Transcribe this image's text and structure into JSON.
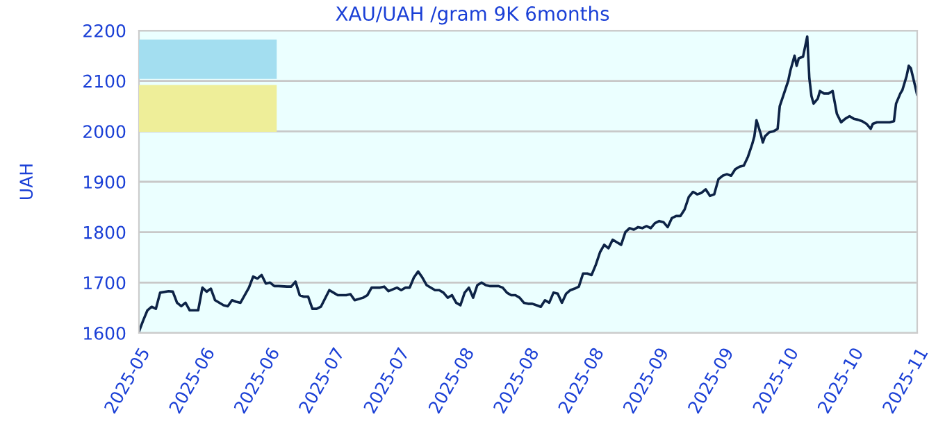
{
  "chart_data": {
    "type": "line",
    "title": "XAU/UAH /gram 9K 6months",
    "ylabel": "UAH",
    "x": [
      "2025-05-01",
      "2025-05-02",
      "2025-05-03",
      "2025-05-04",
      "2025-05-05",
      "2025-05-06",
      "2025-05-08",
      "2025-05-09",
      "2025-05-10",
      "2025-05-11",
      "2025-05-12",
      "2025-05-13",
      "2025-05-14",
      "2025-05-15",
      "2025-05-16",
      "2025-05-17",
      "2025-05-18",
      "2025-05-19",
      "2025-05-21",
      "2025-05-22",
      "2025-05-23",
      "2025-05-24",
      "2025-05-25",
      "2025-05-27",
      "2025-05-28",
      "2025-05-29",
      "2025-05-30",
      "2025-05-31",
      "2025-06-01",
      "2025-06-02",
      "2025-06-03",
      "2025-06-05",
      "2025-06-06",
      "2025-06-07",
      "2025-06-08",
      "2025-06-09",
      "2025-06-10",
      "2025-06-11",
      "2025-06-12",
      "2025-06-13",
      "2025-06-15",
      "2025-06-16",
      "2025-06-17",
      "2025-06-19",
      "2025-06-20",
      "2025-06-21",
      "2025-06-23",
      "2025-06-24",
      "2025-06-25",
      "2025-06-26",
      "2025-06-27",
      "2025-06-28",
      "2025-06-29",
      "2025-07-01",
      "2025-07-02",
      "2025-07-03",
      "2025-07-04",
      "2025-07-05",
      "2025-07-06",
      "2025-07-07",
      "2025-07-08",
      "2025-07-10",
      "2025-07-11",
      "2025-07-12",
      "2025-07-13",
      "2025-07-14",
      "2025-07-15",
      "2025-07-16",
      "2025-07-17",
      "2025-07-18",
      "2025-07-19",
      "2025-07-20",
      "2025-07-21",
      "2025-07-22",
      "2025-07-23",
      "2025-07-25",
      "2025-07-26",
      "2025-07-27",
      "2025-07-28",
      "2025-07-29",
      "2025-07-30",
      "2025-07-31",
      "2025-08-01",
      "2025-08-02",
      "2025-08-03",
      "2025-08-04",
      "2025-08-05",
      "2025-08-06",
      "2025-08-07",
      "2025-08-08",
      "2025-08-09",
      "2025-08-10",
      "2025-08-11",
      "2025-08-12",
      "2025-08-13",
      "2025-08-14",
      "2025-08-15",
      "2025-08-16",
      "2025-08-17",
      "2025-08-18",
      "2025-08-19",
      "2025-08-20",
      "2025-08-21",
      "2025-08-22",
      "2025-08-23",
      "2025-08-24",
      "2025-08-25",
      "2025-08-26",
      "2025-08-27",
      "2025-08-28",
      "2025-08-29",
      "2025-08-30",
      "2025-08-31",
      "2025-09-01",
      "2025-09-02",
      "2025-09-03",
      "2025-09-04",
      "2025-09-05",
      "2025-09-06",
      "2025-09-07",
      "2025-09-08",
      "2025-09-09",
      "2025-09-10",
      "2025-09-11",
      "2025-09-12",
      "2025-09-13",
      "2025-09-14",
      "2025-09-15",
      "2025-09-16",
      "2025-09-17",
      "2025-09-18",
      "2025-09-19",
      "2025-09-20",
      "2025-09-21",
      "2025-09-22",
      "2025-09-23",
      "2025-09-23T12:00",
      "2025-09-24",
      "2025-09-25",
      "2025-09-25T12:00",
      "2025-09-26",
      "2025-09-27",
      "2025-09-28",
      "2025-09-29",
      "2025-09-29T12:00",
      "2025-09-30T12:00",
      "2025-10-01T12:00",
      "2025-10-02",
      "2025-10-03",
      "2025-10-03T12:00",
      "2025-10-04",
      "2025-10-05",
      "2025-10-06",
      "2025-10-06T12:00",
      "2025-10-07",
      "2025-10-07T12:00",
      "2025-10-08T12:00",
      "2025-10-09",
      "2025-10-10",
      "2025-10-11",
      "2025-10-12",
      "2025-10-13",
      "2025-10-14",
      "2025-10-15",
      "2025-10-16",
      "2025-10-17",
      "2025-10-18",
      "2025-10-19",
      "2025-10-20",
      "2025-10-21",
      "2025-10-21T12:00",
      "2025-10-22T12:00",
      "2025-10-24",
      "2025-10-25T12:00",
      "2025-10-26T12:00",
      "2025-10-27",
      "2025-10-28",
      "2025-10-28T12:00",
      "2025-10-29T12:00",
      "2025-10-30",
      "2025-10-30T12:00",
      "2025-10-31T12:00",
      "2025-11-01"
    ],
    "series": [
      {
        "color": "#0d2346",
        "values": [
          1603,
          1625,
          1645,
          1652,
          1648,
          1680,
          1683,
          1682,
          1660,
          1653,
          1660,
          1645,
          1645,
          1645,
          1690,
          1682,
          1688,
          1665,
          1655,
          1653,
          1665,
          1662,
          1660,
          1690,
          1712,
          1708,
          1715,
          1698,
          1700,
          1693,
          1693,
          1692,
          1692,
          1702,
          1675,
          1672,
          1672,
          1648,
          1648,
          1652,
          1685,
          1680,
          1675,
          1675,
          1677,
          1665,
          1670,
          1675,
          1690,
          1690,
          1690,
          1692,
          1683,
          1690,
          1685,
          1690,
          1690,
          1710,
          1722,
          1710,
          1695,
          1685,
          1685,
          1680,
          1670,
          1675,
          1660,
          1655,
          1680,
          1690,
          1670,
          1695,
          1700,
          1695,
          1693,
          1693,
          1690,
          1680,
          1675,
          1675,
          1670,
          1660,
          1658,
          1658,
          1655,
          1652,
          1665,
          1660,
          1680,
          1678,
          1660,
          1678,
          1685,
          1688,
          1692,
          1718,
          1718,
          1715,
          1735,
          1760,
          1775,
          1768,
          1785,
          1780,
          1775,
          1800,
          1808,
          1805,
          1810,
          1808,
          1812,
          1808,
          1818,
          1822,
          1820,
          1810,
          1828,
          1832,
          1832,
          1845,
          1870,
          1880,
          1875,
          1878,
          1885,
          1872,
          1875,
          1905,
          1912,
          1915,
          1912,
          1925,
          1930,
          1932,
          1950,
          1975,
          1990,
          2022,
          1995,
          1978,
          1990,
          1998,
          2000,
          2005,
          2050,
          2075,
          2100,
          2120,
          2150,
          2130,
          2145,
          2148,
          2188,
          2105,
          2070,
          2055,
          2065,
          2080,
          2075,
          2075,
          2080,
          2035,
          2018,
          2025,
          2030,
          2025,
          2023,
          2020,
          2015,
          2005,
          2015,
          2018,
          2018,
          2018,
          2020,
          2055,
          2075,
          2082,
          2110,
          2130,
          2125,
          2090,
          2072
        ]
      }
    ],
    "xlim": [
      "2025-05-01",
      "2025-11-01"
    ],
    "xticks": [
      {
        "value": "2025-05-01",
        "label": "2025-05"
      },
      {
        "value": "2025-05-16T08:00",
        "label": "2025-06"
      },
      {
        "value": "2025-05-31T16:00",
        "label": "2025-06"
      },
      {
        "value": "2025-06-16",
        "label": "2025-07"
      },
      {
        "value": "2025-07-01T08:00",
        "label": "2025-07"
      },
      {
        "value": "2025-07-16T16:00",
        "label": "2025-08"
      },
      {
        "value": "2025-08-01",
        "label": "2025-08"
      },
      {
        "value": "2025-08-16T08:00",
        "label": "2025-08"
      },
      {
        "value": "2025-08-31T16:00",
        "label": "2025-09"
      },
      {
        "value": "2025-09-16",
        "label": "2025-09"
      },
      {
        "value": "2025-10-01T08:00",
        "label": "2025-10"
      },
      {
        "value": "2025-10-16T16:00",
        "label": "2025-10"
      },
      {
        "value": "2025-11-01",
        "label": "2025-11"
      }
    ],
    "ylim": [
      1600,
      2200
    ],
    "yticks": [
      1600,
      1700,
      1800,
      1900,
      2000,
      2100,
      2200
    ],
    "grid": "y",
    "marker": "none",
    "line_style": "solid",
    "legend": false
  }
}
